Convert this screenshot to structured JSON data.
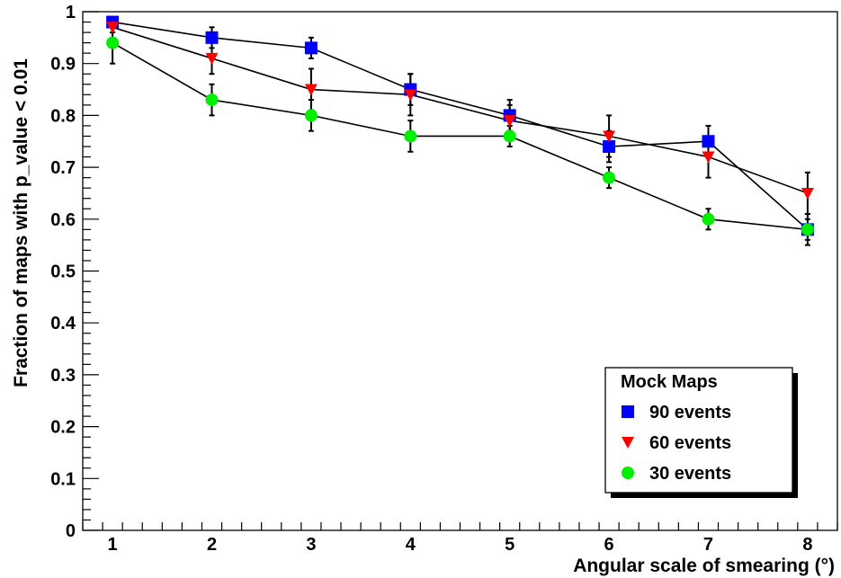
{
  "chart_data": {
    "type": "scatter",
    "title": "",
    "xlabel": "Angular scale of smearing (°)",
    "ylabel": "Fraction of maps with p_value < 0.01",
    "xlim": [
      0.7,
      8.3
    ],
    "ylim": [
      0,
      1
    ],
    "xticks": [
      1,
      2,
      3,
      4,
      5,
      6,
      7,
      8
    ],
    "yticks": [
      0,
      0.1,
      0.2,
      0.3,
      0.4,
      0.5,
      0.6,
      0.7,
      0.8,
      0.9,
      1
    ],
    "grid": false,
    "legend_placement": "bottom-right",
    "legend_title": "Mock Maps",
    "x": [
      1,
      2,
      3,
      4,
      5,
      6,
      7,
      8
    ],
    "series": [
      {
        "name": "90 events",
        "color": "#0000ff",
        "marker": "square",
        "values": [
          0.98,
          0.95,
          0.93,
          0.85,
          0.8,
          0.74,
          0.75,
          0.58
        ],
        "errors": [
          0.01,
          0.02,
          0.02,
          0.03,
          0.03,
          0.03,
          0.03,
          0.03
        ]
      },
      {
        "name": "60 events",
        "color": "#ff0000",
        "marker": "triangle-down",
        "values": [
          0.97,
          0.91,
          0.85,
          0.84,
          0.79,
          0.76,
          0.72,
          0.65
        ],
        "errors": [
          0.01,
          0.03,
          0.04,
          0.04,
          0.03,
          0.04,
          0.04,
          0.04
        ]
      },
      {
        "name": "30 events",
        "color": "#00ee00",
        "marker": "circle",
        "values": [
          0.94,
          0.83,
          0.8,
          0.76,
          0.76,
          0.68,
          0.6,
          0.58
        ],
        "errors": [
          0.04,
          0.03,
          0.03,
          0.03,
          0.02,
          0.02,
          0.02,
          0.02
        ]
      }
    ]
  }
}
